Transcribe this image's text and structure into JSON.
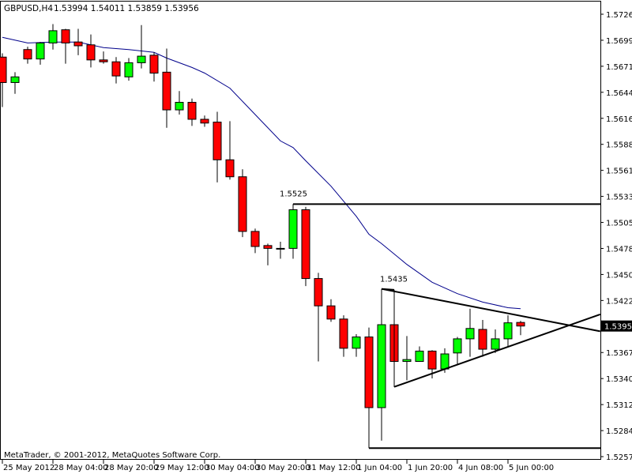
{
  "header": {
    "symbol_timeframe": "GBPUSD,H4",
    "ohlc": "1.53994 1.54011 1.53859 1.53956"
  },
  "footer": {
    "copyright": "MetaTrader, © 2001-2012, MetaQuotes Software Corp."
  },
  "colors": {
    "bull": "#00ff00",
    "bear": "#ff0000",
    "outline": "#000000",
    "ma": "#00008b",
    "background": "#ffffff"
  },
  "chart_data": {
    "type": "candlestick",
    "symbol": "GBPUSD",
    "timeframe": "H4",
    "ylim": [
      1.5257,
      1.57265
    ],
    "grid": false,
    "current_price": "1.53956",
    "y_ticks": [
      "1.57265",
      "1.56990",
      "1.56715",
      "1.56440",
      "1.56160",
      "1.55885",
      "1.55610",
      "1.55335",
      "1.55055",
      "1.54780",
      "1.54505",
      "1.54225",
      "1.53950",
      "1.53675",
      "1.53400",
      "1.53120",
      "1.52845",
      "1.52570"
    ],
    "x_labels": [
      "25 May 2012",
      "28 May 04:00",
      "28 May 20:00",
      "29 May 12:00",
      "30 May 04:00",
      "30 May 20:00",
      "31 May 12:00",
      "1 Jun 04:00",
      "1 Jun 20:00",
      "4 Jun 08:00",
      "5 Jun 00:00"
    ],
    "x_label_bar_step": 4,
    "candles_ohlc": [
      [
        1.5681,
        1.5685,
        1.5628,
        1.5654
      ],
      [
        1.5654,
        1.5665,
        1.5642,
        1.566
      ],
      [
        1.5689,
        1.5692,
        1.5674,
        1.5679
      ],
      [
        1.5679,
        1.5697,
        1.5673,
        1.5696
      ],
      [
        1.5696,
        1.5716,
        1.5689,
        1.5709
      ],
      [
        1.571,
        1.5711,
        1.5674,
        1.5696
      ],
      [
        1.5697,
        1.5711,
        1.5683,
        1.5693
      ],
      [
        1.5694,
        1.5705,
        1.567,
        1.5678
      ],
      [
        1.5678,
        1.5687,
        1.5674,
        1.5676
      ],
      [
        1.5676,
        1.5681,
        1.5653,
        1.5661
      ],
      [
        1.566,
        1.568,
        1.5656,
        1.5675
      ],
      [
        1.5675,
        1.5715,
        1.5669,
        1.5682
      ],
      [
        1.5683,
        1.5686,
        1.5655,
        1.5664
      ],
      [
        1.5665,
        1.569,
        1.5606,
        1.5625
      ],
      [
        1.5625,
        1.5645,
        1.562,
        1.5633
      ],
      [
        1.5633,
        1.5637,
        1.5608,
        1.5615
      ],
      [
        1.5615,
        1.5619,
        1.5607,
        1.5611
      ],
      [
        1.5612,
        1.5623,
        1.5548,
        1.5572
      ],
      [
        1.5572,
        1.5613,
        1.5551,
        1.5554
      ],
      [
        1.5554,
        1.5562,
        1.549,
        1.5496
      ],
      [
        1.5496,
        1.5499,
        1.5473,
        1.548
      ],
      [
        1.5481,
        1.5483,
        1.546,
        1.5478
      ],
      [
        1.5478,
        1.5485,
        1.5467,
        1.5478
      ],
      [
        1.5478,
        1.5525,
        1.5467,
        1.5519
      ],
      [
        1.5519,
        1.5522,
        1.5438,
        1.5446
      ],
      [
        1.5446,
        1.5452,
        1.5358,
        1.5417
      ],
      [
        1.5417,
        1.5424,
        1.54,
        1.5403
      ],
      [
        1.5403,
        1.5407,
        1.5363,
        1.5372
      ],
      [
        1.5372,
        1.5387,
        1.5363,
        1.5384
      ],
      [
        1.5384,
        1.5394,
        1.5266,
        1.5309
      ],
      [
        1.5309,
        1.5435,
        1.5274,
        1.5397
      ],
      [
        1.5397,
        1.5434,
        1.5331,
        1.5358
      ],
      [
        1.5358,
        1.5385,
        1.5338,
        1.536
      ],
      [
        1.5358,
        1.5374,
        1.5358,
        1.5369
      ],
      [
        1.5369,
        1.537,
        1.534,
        1.535
      ],
      [
        1.535,
        1.5372,
        1.5346,
        1.5366
      ],
      [
        1.5367,
        1.5384,
        1.5354,
        1.5382
      ],
      [
        1.5382,
        1.5414,
        1.5363,
        1.5393
      ],
      [
        1.5392,
        1.5402,
        1.5363,
        1.5371
      ],
      [
        1.5371,
        1.5392,
        1.5367,
        1.5382
      ],
      [
        1.5382,
        1.5407,
        1.5374,
        1.5399
      ],
      [
        1.53994,
        1.54011,
        1.53859,
        1.53956
      ]
    ],
    "moving_average": [
      [
        0,
        1.5702
      ],
      [
        2,
        1.5696
      ],
      [
        4,
        1.5697
      ],
      [
        6,
        1.5697
      ],
      [
        8,
        1.5691
      ],
      [
        10,
        1.5689
      ],
      [
        12,
        1.5686
      ],
      [
        13,
        1.568
      ],
      [
        15,
        1.567
      ],
      [
        16,
        1.5664
      ],
      [
        18,
        1.5648
      ],
      [
        20,
        1.562
      ],
      [
        22,
        1.5592
      ],
      [
        23,
        1.5585
      ],
      [
        24,
        1.5571
      ],
      [
        26,
        1.5544
      ],
      [
        28,
        1.5512
      ],
      [
        29,
        1.5493
      ],
      [
        30,
        1.5483
      ],
      [
        32,
        1.5461
      ],
      [
        34,
        1.5442
      ],
      [
        36,
        1.543
      ],
      [
        38,
        1.5421
      ],
      [
        40,
        1.5415
      ],
      [
        41,
        1.5414
      ]
    ],
    "annotations": {
      "resistance": {
        "label": "1.5525",
        "price": 1.5525,
        "from_bar": 23
      },
      "support": {
        "price": 1.5266,
        "from_bar": 29
      },
      "triangle_high": {
        "label": "1.5435",
        "bar": 30,
        "price": 1.5435
      },
      "upper_trendline": {
        "from": [
          30,
          1.5435
        ],
        "to": [
          47.3,
          1.539
        ]
      },
      "lower_trendline": {
        "from": [
          31,
          1.5331
        ],
        "to": [
          47.3,
          1.5408
        ]
      }
    }
  }
}
